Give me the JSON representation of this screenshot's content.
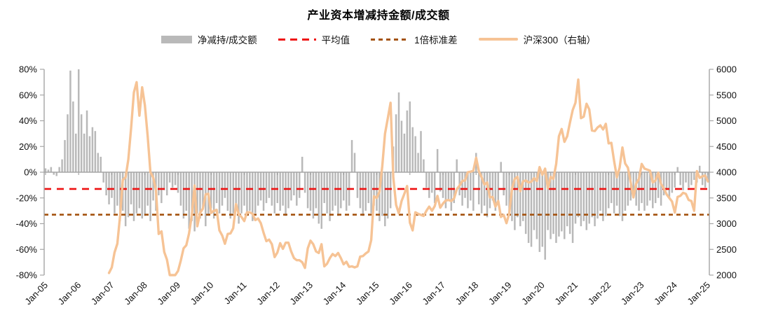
{
  "title": "产业资本增减持金额/成交额",
  "legend": {
    "items": [
      {
        "label": "净减持/成交额",
        "swatch": "bar",
        "color": "#b9b9b9"
      },
      {
        "label": "平均值",
        "swatch": "dash-long",
        "color": "#ee1111"
      },
      {
        "label": "1倍标准差",
        "swatch": "dash-short",
        "color": "#a3520f"
      },
      {
        "label": "沪深300（右轴）",
        "swatch": "line",
        "color": "#f6c395"
      }
    ]
  },
  "colors": {
    "bars": "#b9b9b9",
    "mean_line": "#ee1111",
    "std_line": "#a3520f",
    "csi_line": "#f6c395",
    "axis": "#a6a6a6",
    "text": "#111111"
  },
  "chart_data": {
    "type": "bar+line",
    "title": "产业资本增减持金额/成交额",
    "x_start": "Jan-05",
    "x_freq": "monthly",
    "x_tick_labels": [
      "Jan-05",
      "Jan-06",
      "Jan-07",
      "Jan-08",
      "Jan-09",
      "Jan-10",
      "Jan-11",
      "Jan-12",
      "Jan-13",
      "Jan-14",
      "Jan-15",
      "Jan-16",
      "Jan-17",
      "Jan-18",
      "Jan-19",
      "Jan-20",
      "Jan-21",
      "Jan-22",
      "Jan-23",
      "Jan-24",
      "Jan-25"
    ],
    "left_axis": {
      "min": -80,
      "max": 80,
      "tick_labels": [
        "80%",
        "60%",
        "40%",
        "20%",
        "0%",
        "-20%",
        "-40%",
        "-60%",
        "-80%"
      ],
      "tick_values": [
        80,
        60,
        40,
        20,
        0,
        -20,
        -40,
        -60,
        -80
      ]
    },
    "right_axis": {
      "min": 2000,
      "max": 6000,
      "tick_values": [
        6000,
        5500,
        5000,
        4500,
        4000,
        3500,
        3000,
        2500,
        2000
      ]
    },
    "mean_pct": -13,
    "std_pct": -33,
    "grid": false,
    "legend_position": "top",
    "series": [
      {
        "name": "净减持/成交额",
        "type": "bar",
        "axis": "left",
        "unit": "%",
        "values": [
          3,
          2,
          4,
          -2,
          -3,
          4,
          10,
          25,
          45,
          79,
          55,
          30,
          80,
          45,
          30,
          48,
          28,
          35,
          32,
          15,
          12,
          -8,
          -18,
          -25,
          -20,
          -32,
          -26,
          -38,
          -30,
          -42,
          -35,
          -25,
          -38,
          -32,
          -28,
          -36,
          -34,
          -26,
          -38,
          -22,
          -30,
          -18,
          -24,
          -14,
          -18,
          -8,
          -12,
          -10,
          -16,
          -26,
          -36,
          -30,
          -44,
          -38,
          -46,
          -32,
          -36,
          -28,
          -42,
          -34,
          -28,
          -36,
          -24,
          -32,
          -26,
          -20,
          -30,
          -36,
          -32,
          -26,
          -40,
          -32,
          -26,
          -34,
          -30,
          -38,
          -32,
          -26,
          -22,
          -30,
          -24,
          -20,
          -26,
          -32,
          -24,
          -30,
          -26,
          -34,
          -28,
          -22,
          -18,
          -26,
          -20,
          12,
          -16,
          -28,
          -30,
          -36,
          -28,
          -40,
          -44,
          -24,
          -32,
          -38,
          -30,
          -26,
          -34,
          -28,
          -22,
          -30,
          -26,
          25,
          15,
          -20,
          -28,
          -34,
          -30,
          -24,
          -32,
          -26,
          -30,
          -38,
          -34,
          -42,
          -36,
          -28,
          20,
          45,
          62,
          40,
          30,
          48,
          55,
          35,
          28,
          15,
          32,
          10,
          -12,
          -20,
          -16,
          -24,
          18,
          -15,
          -20,
          -28,
          -22,
          -30,
          -24,
          10,
          -18,
          -26,
          -20,
          -28,
          -22,
          -30,
          15,
          -25,
          -32,
          -26,
          -35,
          -28,
          -22,
          -30,
          -24,
          8,
          -18,
          -26,
          -30,
          -38,
          -45,
          -35,
          -42,
          -38,
          -48,
          -55,
          -58,
          -45,
          -52,
          -62,
          -58,
          -68,
          -45,
          -52,
          -48,
          -55,
          -50,
          -46,
          -52,
          -42,
          -48,
          -55,
          -40,
          -35,
          -42,
          -38,
          -45,
          -40,
          -35,
          -42,
          -36,
          -30,
          -38,
          -34,
          -28,
          -24,
          -32,
          -26,
          -34,
          -38,
          -30,
          -26,
          -22,
          -18,
          -26,
          -30,
          -24,
          -30,
          -26,
          -22,
          -28,
          -24,
          -20,
          -26,
          -18,
          -14,
          -20,
          -16,
          -12,
          4,
          -10,
          -14,
          -8,
          -12,
          -10,
          -6,
          -8,
          5,
          -10,
          -12,
          -8
        ]
      },
      {
        "name": "沪深300（右轴）",
        "type": "line",
        "axis": "right",
        "unit": "pts",
        "values": [
          null,
          null,
          null,
          null,
          null,
          null,
          null,
          null,
          null,
          null,
          null,
          null,
          null,
          null,
          null,
          null,
          null,
          null,
          null,
          null,
          null,
          null,
          null,
          2041,
          2150,
          2440,
          2610,
          3150,
          3850,
          3900,
          4250,
          4850,
          5550,
          5750,
          5100,
          5650,
          5300,
          4700,
          4000,
          3900,
          3650,
          2800,
          2850,
          2450,
          2300,
          2000,
          2000,
          2000,
          2080,
          2280,
          2520,
          2580,
          2810,
          3170,
          3740,
          2950,
          3210,
          3290,
          3570,
          3580,
          3210,
          3250,
          3270,
          2870,
          2770,
          2610,
          2800,
          2810,
          2910,
          3380,
          3180,
          3130,
          3050,
          3220,
          3220,
          3190,
          3070,
          3100,
          3010,
          2820,
          2660,
          2690,
          2600,
          2350,
          2440,
          2620,
          2510,
          2630,
          2630,
          2460,
          2330,
          2290,
          2290,
          2250,
          2140,
          2520,
          2670,
          2600,
          2460,
          2430,
          2600,
          2170,
          2220,
          2330,
          2410,
          2370,
          2430,
          2330,
          2210,
          2260,
          2160,
          2170,
          2150,
          2170,
          2360,
          2370,
          2420,
          2460,
          2680,
          3530,
          3500,
          3620,
          4120,
          4750,
          5050,
          5350,
          3900,
          3365,
          3200,
          3440,
          3580,
          3730,
          3020,
          2870,
          3220,
          3190,
          3170,
          3150,
          3250,
          3330,
          3250,
          3340,
          3540,
          3310,
          3390,
          3450,
          3460,
          3440,
          3490,
          3670,
          3740,
          3830,
          3840,
          4000,
          4010,
          4030,
          4280,
          4020,
          3900,
          3760,
          3800,
          3510,
          3520,
          3330,
          3440,
          3130,
          3170,
          3010,
          3200,
          3680,
          3870,
          3910,
          3630,
          3820,
          3840,
          3800,
          3815,
          3885,
          3830,
          4100,
          3950,
          4070,
          3690,
          3910,
          3870,
          4160,
          4700,
          4840,
          4590,
          4700,
          4960,
          5210,
          5350,
          5800,
          5050,
          5080,
          5330,
          5220,
          4810,
          4800,
          4870,
          4910,
          4830,
          4940,
          4560,
          4570,
          4220,
          3900,
          4090,
          4480,
          4170,
          4090,
          3800,
          3510,
          3780,
          3870,
          4160,
          4070,
          4050,
          4030,
          3800,
          3840,
          3990,
          3770,
          3690,
          3570,
          3500,
          3430,
          3215,
          3520,
          3540,
          3600,
          3580,
          3460,
          3440,
          3250,
          4020,
          3890,
          3920,
          3935,
          3820
        ]
      }
    ]
  }
}
